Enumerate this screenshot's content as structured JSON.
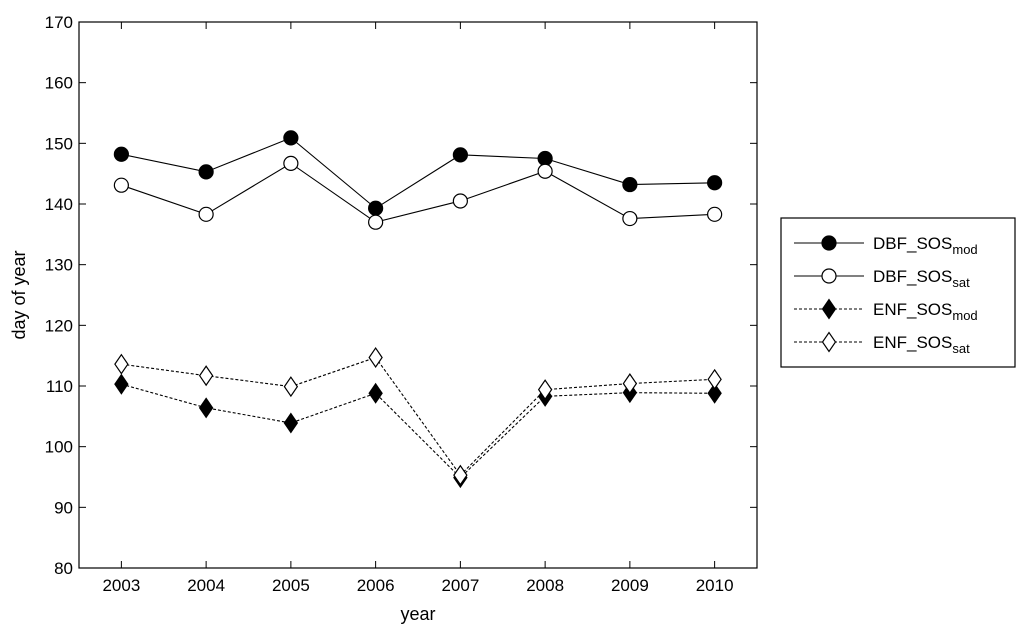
{
  "chart_data": {
    "type": "line",
    "title": "",
    "xlabel": "year",
    "ylabel": "day of year",
    "x": [
      2003,
      2004,
      2005,
      2006,
      2007,
      2008,
      2009,
      2010
    ],
    "xlim": [
      2002.5,
      2010.5
    ],
    "ylim": [
      80,
      170
    ],
    "yticks": [
      80,
      90,
      100,
      110,
      120,
      130,
      140,
      150,
      160,
      170
    ],
    "grid": false,
    "legend_position": "right",
    "series": [
      {
        "name_main": "DBF_SOS",
        "name_sub": "mod",
        "marker": "circle-filled",
        "line": "solid",
        "values": [
          148.2,
          145.3,
          150.9,
          139.3,
          148.1,
          147.5,
          143.2,
          143.5
        ]
      },
      {
        "name_main": "DBF_SOS",
        "name_sub": "sat",
        "marker": "circle-open",
        "line": "solid",
        "values": [
          143.1,
          138.3,
          146.7,
          137.0,
          140.5,
          145.4,
          137.6,
          138.3
        ]
      },
      {
        "name_main": "ENF_SOS",
        "name_sub": "mod",
        "marker": "diamond-filled",
        "line": "dashed",
        "values": [
          110.3,
          106.4,
          103.9,
          108.8,
          94.9,
          108.3,
          108.9,
          108.8
        ]
      },
      {
        "name_main": "ENF_SOS",
        "name_sub": "sat",
        "marker": "diamond-open",
        "line": "dashed",
        "values": [
          113.6,
          111.7,
          109.9,
          114.7,
          95.3,
          109.4,
          110.4,
          111.1
        ]
      }
    ]
  }
}
